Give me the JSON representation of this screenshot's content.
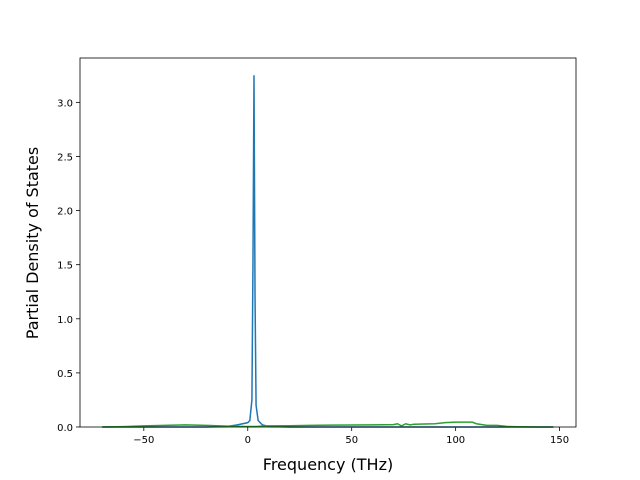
{
  "chart_data": {
    "type": "line",
    "xlabel": "Frequency (THz)",
    "ylabel": "Partial Density of States",
    "x": [
      -70,
      -60,
      -50,
      -40,
      -30,
      -20,
      -10,
      -5,
      0,
      1,
      2,
      2.5,
      3,
      3.5,
      4,
      5,
      7,
      10,
      20,
      30,
      40,
      50,
      60,
      70,
      72,
      74,
      76,
      78,
      80,
      90,
      95,
      100,
      108,
      110,
      115,
      120,
      125,
      130,
      140,
      147
    ],
    "series": [
      {
        "color": "#1f77b4",
        "values": [
          0,
          0,
          0,
          0,
          0,
          0,
          0.005,
          0.02,
          0.04,
          0.06,
          0.25,
          1.5,
          3.25,
          1.2,
          0.2,
          0.06,
          0.02,
          0.005,
          0,
          0,
          0,
          0,
          0,
          0,
          0,
          0,
          0,
          0,
          0,
          0,
          0,
          0,
          0,
          0,
          0,
          0,
          0,
          0,
          0,
          0
        ]
      },
      {
        "color": "#2ca02c",
        "values": [
          0,
          0.003,
          0.01,
          0.015,
          0.02,
          0.015,
          0.008,
          0.006,
          0.005,
          0.005,
          0.005,
          0.005,
          0.005,
          0.005,
          0.005,
          0.006,
          0.008,
          0.01,
          0.012,
          0.015,
          0.017,
          0.018,
          0.02,
          0.022,
          0.03,
          0.01,
          0.03,
          0.02,
          0.025,
          0.03,
          0.04,
          0.045,
          0.045,
          0.03,
          0.015,
          0.015,
          0.005,
          0.002,
          0,
          0
        ]
      }
    ],
    "xlim": [
      -80.7,
      157.9
    ],
    "ylim": [
      0,
      3.41
    ],
    "xticks": [
      {
        "value": -50,
        "label": "−50"
      },
      0,
      50,
      100,
      150
    ],
    "yticks": [
      {
        "value": 0,
        "label": "0.0"
      },
      {
        "value": 0.5,
        "label": "0.5"
      },
      {
        "value": 1,
        "label": "1.0"
      },
      {
        "value": 1.5,
        "label": "1.5"
      },
      {
        "value": 2,
        "label": "2.0"
      },
      {
        "value": 2.5,
        "label": "2.5"
      },
      {
        "value": 3,
        "label": "3.0"
      }
    ]
  }
}
